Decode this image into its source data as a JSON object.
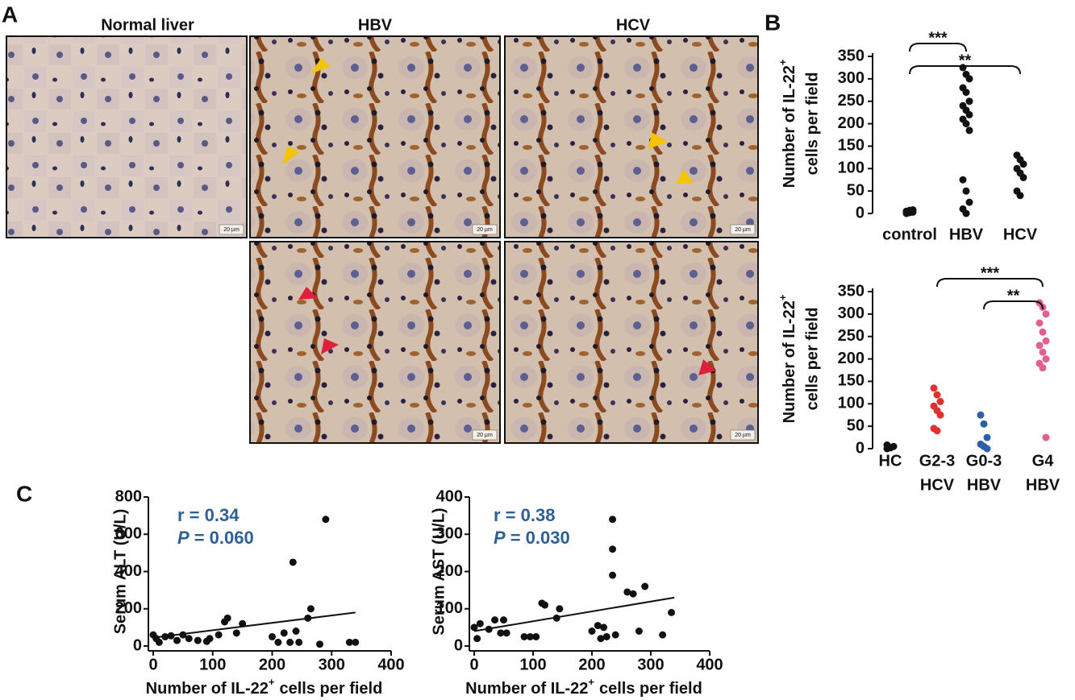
{
  "panels": [
    "A",
    "B",
    "C"
  ],
  "micrograph_columns": [
    "Normal liver",
    "HBV",
    "HCV"
  ],
  "micrographs": [
    {
      "scale_bar": "20 µm"
    },
    {
      "scale_bar": "20 µm"
    },
    {
      "scale_bar": "20 µm"
    },
    {
      "scale_bar": "20 µm"
    },
    {
      "scale_bar": "20 µm"
    }
  ],
  "chart_data": [
    {
      "type": "strip",
      "ylabel": {
        "main": "Number of IL-22",
        "sup": "+",
        "end": "cells per field"
      },
      "categories": [
        "control",
        "HBV",
        "HCV"
      ],
      "values": [
        [
          0,
          2,
          3,
          5,
          7,
          8
        ],
        [
          325,
          310,
          300,
          280,
          270,
          250,
          240,
          230,
          220,
          210,
          200,
          185,
          75,
          50,
          25,
          10,
          0
        ],
        [
          130,
          120,
          110,
          100,
          90,
          80,
          50,
          40
        ]
      ],
      "colors": [
        "#111111",
        "#111111",
        "#111111"
      ],
      "ylim": [
        0,
        350
      ],
      "yticks": [
        0,
        50,
        100,
        150,
        200,
        250,
        300,
        350
      ],
      "annotations": [
        {
          "text": "***",
          "between": [
            "control",
            "HBV"
          ]
        },
        {
          "text": "**",
          "between": [
            "control",
            "HCV"
          ]
        }
      ]
    },
    {
      "type": "strip",
      "ylabel": {
        "main": "Number of IL-22",
        "sup": "+",
        "end": "cells per field"
      },
      "categories": [
        [
          "HC"
        ],
        [
          "G2-3",
          "HCV"
        ],
        [
          "G0-3",
          "HBV"
        ],
        [
          "G4",
          "HBV"
        ]
      ],
      "values": [
        [
          0,
          2,
          5,
          8
        ],
        [
          135,
          120,
          105,
          95,
          85,
          75,
          45,
          40
        ],
        [
          75,
          55,
          25,
          10,
          5,
          0
        ],
        [
          325,
          315,
          300,
          280,
          260,
          240,
          230,
          215,
          200,
          190,
          180,
          25
        ]
      ],
      "colors": [
        "#111111",
        "#e0302f",
        "#2b5fa8",
        "#e0608f"
      ],
      "ylim": [
        0,
        350
      ],
      "yticks": [
        0,
        50,
        100,
        150,
        200,
        250,
        300,
        350
      ],
      "annotations": [
        {
          "text": "***",
          "between": [
            1,
            3
          ]
        },
        {
          "text": "**",
          "between": [
            2,
            3
          ]
        }
      ]
    },
    {
      "type": "scatter",
      "ylabel": "Serum ALT (U/L)",
      "xlabel": {
        "main": "Number of IL-22",
        "sup": "+",
        "end": "cells per field"
      },
      "stat_r": "r = 0.34",
      "stat_p_symbol": "P",
      "stat_p": "= 0.060",
      "x": [
        0,
        5,
        10,
        20,
        30,
        40,
        50,
        60,
        75,
        90,
        95,
        110,
        120,
        125,
        140,
        150,
        200,
        210,
        220,
        230,
        235,
        240,
        245,
        260,
        265,
        280,
        290,
        330,
        340
      ],
      "y": [
        60,
        40,
        20,
        50,
        55,
        30,
        60,
        40,
        30,
        25,
        40,
        60,
        130,
        150,
        70,
        120,
        50,
        20,
        70,
        20,
        450,
        80,
        20,
        150,
        200,
        10,
        680,
        20,
        20
      ],
      "fit": {
        "x": [
          0,
          340
        ],
        "y": [
          45,
          180
        ]
      },
      "color": "#111111",
      "xlim": [
        0,
        400
      ],
      "xticks": [
        0,
        100,
        200,
        300,
        400
      ],
      "ylim": [
        0,
        800
      ],
      "yticks": [
        0,
        200,
        400,
        600,
        800
      ]
    },
    {
      "type": "scatter",
      "ylabel": "Serum AST (U/L)",
      "xlabel": {
        "main": "Number of IL-22",
        "sup": "+",
        "end": "cells per field"
      },
      "stat_r": "r = 0.38",
      "stat_p_symbol": "P",
      "stat_p": "= 0.030",
      "x": [
        0,
        5,
        10,
        25,
        35,
        45,
        50,
        55,
        85,
        95,
        105,
        115,
        120,
        140,
        145,
        200,
        210,
        215,
        220,
        225,
        235,
        235,
        235,
        240,
        260,
        270,
        280,
        290,
        320,
        335
      ],
      "y": [
        50,
        20,
        60,
        45,
        70,
        35,
        70,
        35,
        25,
        25,
        25,
        115,
        110,
        75,
        100,
        40,
        55,
        20,
        50,
        25,
        340,
        260,
        190,
        30,
        145,
        140,
        40,
        160,
        30,
        90
      ],
      "fit": {
        "x": [
          0,
          340
        ],
        "y": [
          40,
          130
        ]
      },
      "color": "#111111",
      "xlim": [
        0,
        400
      ],
      "xticks": [
        0,
        100,
        200,
        300,
        400
      ],
      "ylim": [
        0,
        400
      ],
      "yticks": [
        0,
        100,
        200,
        300,
        400
      ]
    }
  ]
}
